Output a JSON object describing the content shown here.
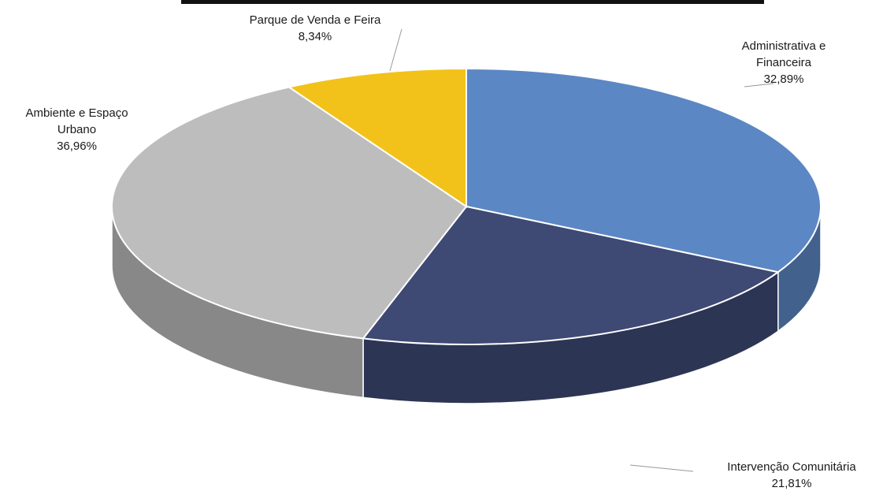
{
  "chart_data": {
    "type": "pie",
    "title": "",
    "slices": [
      {
        "name": "Administrativa e Financeira",
        "label_lines": [
          "Administrativa e",
          "Financeira"
        ],
        "value_label": "32,89%",
        "value": 32.89,
        "color": "#5b87c4"
      },
      {
        "name": "Intervenção Comunitária",
        "label_lines": [
          "Intervenção Comunitária"
        ],
        "value_label": "21,81%",
        "value": 21.81,
        "color": "#3e4a74"
      },
      {
        "name": "Ambiente e Espaço Urbano",
        "label_lines": [
          "Ambiente e Espaço",
          "Urbano"
        ],
        "value_label": "36,96%",
        "value": 36.96,
        "color": "#bdbdbd"
      },
      {
        "name": "Parque de Venda e Feira",
        "label_lines": [
          "Parque de Venda e Feira"
        ],
        "value_label": "8,34%",
        "value": 8.34,
        "color": "#f2c21b"
      }
    ]
  }
}
